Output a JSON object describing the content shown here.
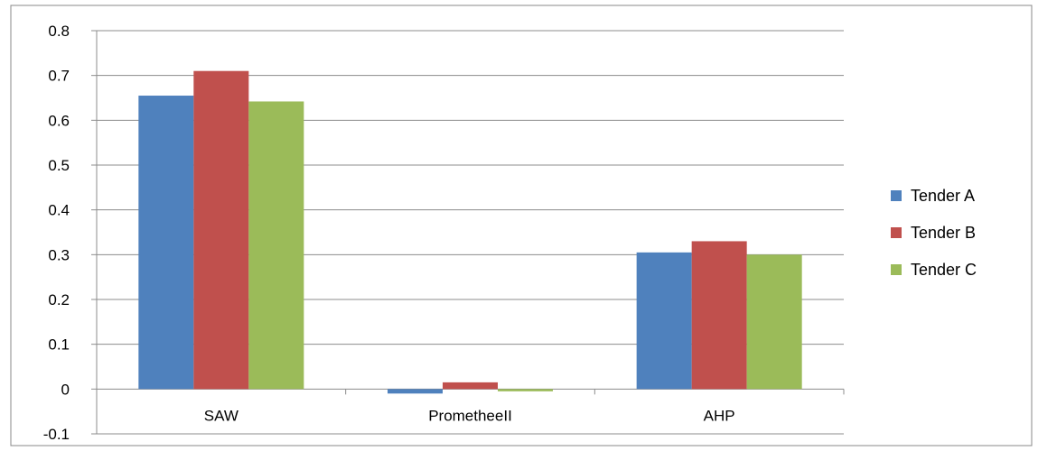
{
  "chart_data": {
    "type": "bar",
    "categories": [
      "SAW",
      "PrometheeII",
      "AHP"
    ],
    "series": [
      {
        "name": "Tender A",
        "values": [
          0.655,
          -0.01,
          0.305
        ],
        "color": "#4F81BD"
      },
      {
        "name": "Tender B",
        "values": [
          0.71,
          0.015,
          0.33
        ],
        "color": "#C0504D"
      },
      {
        "name": "Tender C",
        "values": [
          0.642,
          -0.005,
          0.3
        ],
        "color": "#9BBB59"
      }
    ],
    "title": "",
    "xlabel": "",
    "ylabel": "",
    "ylim": [
      -0.1,
      0.8
    ],
    "yticks": [
      "0.8",
      "0.7",
      "0.6",
      "0.5",
      "0.4",
      "0.3",
      "0.2",
      "0.1",
      "0",
      "-0.1"
    ],
    "grid": true,
    "legend_position": "right"
  }
}
